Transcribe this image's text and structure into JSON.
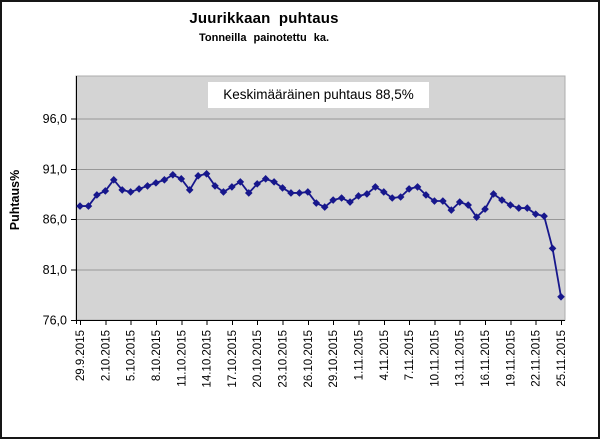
{
  "chart_data": {
    "type": "line",
    "title": "Juurikkaan puhtaus",
    "subtitle": "Tonneilla painotettu ka.",
    "annotation": "Keskimääräinen puhtaus 88,5%",
    "ylabel": "Puhtaus%",
    "xlabel": "",
    "legend_position": "none",
    "grid": true,
    "marker": "diamond",
    "series_color": "#17178C",
    "plot_bg_color": "#D4D4D4",
    "gridline_color": "#989898",
    "ylim": [
      76,
      100.2
    ],
    "y_ticks": [
      76,
      81,
      86,
      91,
      96
    ],
    "y_tick_labels": [
      "76,0",
      "81,0",
      "86,0",
      "91,0",
      "96,0"
    ],
    "x_tick_step": 3,
    "x_tick_labels": [
      "29.9.2015",
      "2.10.2015",
      "5.10.2015",
      "8.10.2015",
      "11.10.2015",
      "14.10.2015",
      "17.10.2015",
      "20.10.2015",
      "23.10.2015",
      "26.10.2015",
      "29.10.2015",
      "1.11.2015",
      "4.11.2015",
      "7.11.2015",
      "10.11.2015",
      "13.11.2015",
      "16.11.2015",
      "19.11.2015",
      "22.11.2015",
      "25.11.2015"
    ],
    "categories": [
      "29.9.2015",
      "30.9.2015",
      "1.10.2015",
      "2.10.2015",
      "3.10.2015",
      "4.10.2015",
      "5.10.2015",
      "6.10.2015",
      "7.10.2015",
      "8.10.2015",
      "9.10.2015",
      "10.10.2015",
      "11.10.2015",
      "12.10.2015",
      "13.10.2015",
      "14.10.2015",
      "15.10.2015",
      "16.10.2015",
      "17.10.2015",
      "18.10.2015",
      "19.10.2015",
      "20.10.2015",
      "21.10.2015",
      "22.10.2015",
      "23.10.2015",
      "24.10.2015",
      "25.10.2015",
      "26.10.2015",
      "27.10.2015",
      "28.10.2015",
      "29.10.2015",
      "30.10.2015",
      "31.10.2015",
      "1.11.2015",
      "2.11.2015",
      "3.11.2015",
      "4.11.2015",
      "5.11.2015",
      "6.11.2015",
      "7.11.2015",
      "8.11.2015",
      "9.11.2015",
      "10.11.2015",
      "11.11.2015",
      "12.11.2015",
      "13.11.2015",
      "14.11.2015",
      "15.11.2015",
      "16.11.2015",
      "17.11.2015",
      "18.11.2015",
      "19.11.2015",
      "20.11.2015",
      "21.11.2015",
      "22.11.2015",
      "23.11.2015",
      "24.11.2015",
      "25.11.2015"
    ],
    "values": [
      87.3,
      87.3,
      88.4,
      88.8,
      89.9,
      88.9,
      88.7,
      89.0,
      89.3,
      89.6,
      89.9,
      90.4,
      90.0,
      88.9,
      90.3,
      90.5,
      89.3,
      88.7,
      89.2,
      89.7,
      88.6,
      89.5,
      90.0,
      89.7,
      89.1,
      88.6,
      88.6,
      88.7,
      87.6,
      87.2,
      87.9,
      88.1,
      87.7,
      88.3,
      88.5,
      89.2,
      88.7,
      88.1,
      88.2,
      89.0,
      89.2,
      88.4,
      87.8,
      87.8,
      86.9,
      87.7,
      87.4,
      86.2,
      87.0,
      88.5,
      87.9,
      87.4,
      87.1,
      87.1,
      86.5,
      86.3,
      83.1,
      78.3
    ]
  }
}
